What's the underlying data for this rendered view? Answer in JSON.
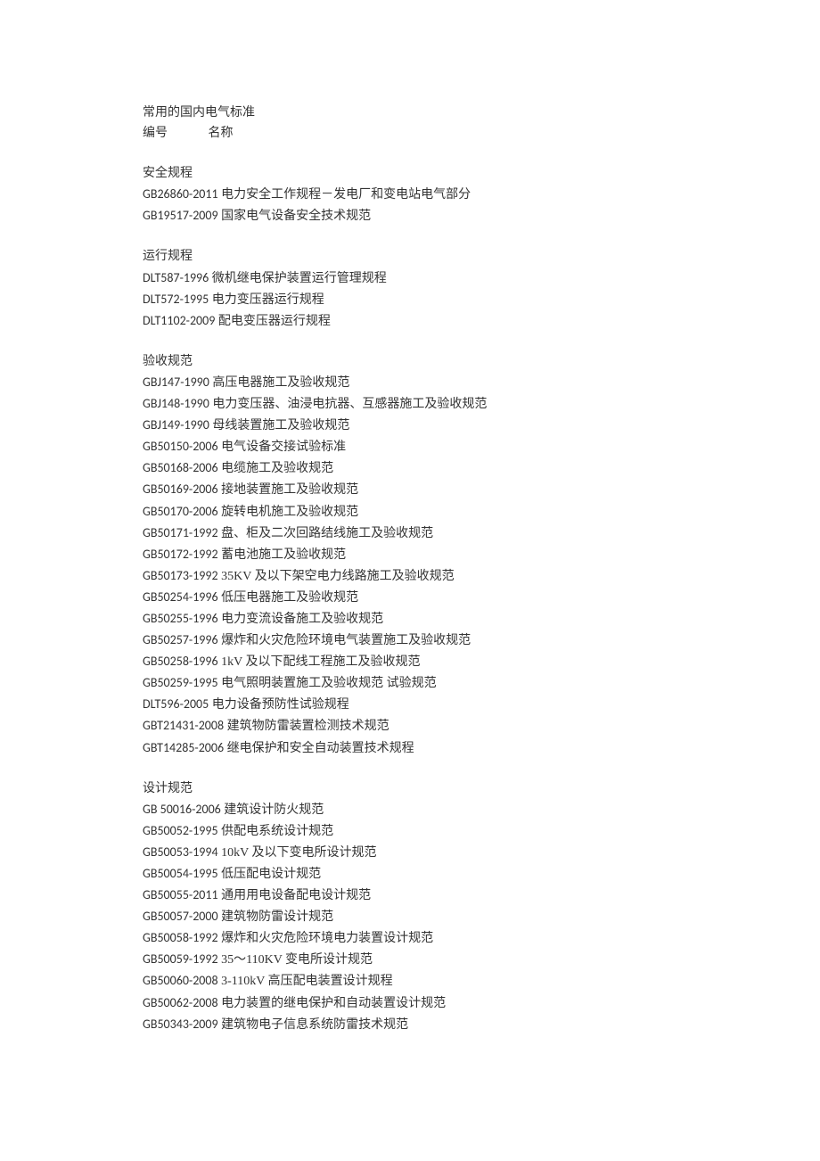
{
  "title": "常用的国内电气标准",
  "header": {
    "code_label": "编号",
    "name_label": "名称"
  },
  "sections": [
    {
      "title": "安全规程",
      "entries": [
        {
          "code": "GB26860-2011",
          "name": "电力安全工作规程－发电厂和变电站电气部分"
        },
        {
          "code": "GB19517-2009",
          "name": "国家电气设备安全技术规范"
        }
      ]
    },
    {
      "title": "运行规程",
      "entries": [
        {
          "code": "DLT587-1996",
          "name": "微机继电保护装置运行管理规程"
        },
        {
          "code": "DLT572-1995",
          "name": "电力变压器运行规程"
        },
        {
          "code": "DLT1102-2009",
          "name": "配电变压器运行规程"
        }
      ]
    },
    {
      "title": "验收规范",
      "entries": [
        {
          "code": "GBJ147-1990",
          "name": "高压电器施工及验收规范"
        },
        {
          "code": "GBJ148-1990",
          "name": "电力变压器、油浸电抗器、互感器施工及验收规范"
        },
        {
          "code": "GBJ149-1990",
          "name": "母线装置施工及验收规范"
        },
        {
          "code": "GB50150-2006",
          "name": "电气设备交接试验标准"
        },
        {
          "code": "GB50168-2006",
          "name": "电缆施工及验收规范"
        },
        {
          "code": "GB50169-2006",
          "name": "接地装置施工及验收规范"
        },
        {
          "code": "GB50170-2006",
          "name": "旋转电机施工及验收规范"
        },
        {
          "code": "GB50171-1992",
          "name": "盘、柜及二次回路结线施工及验收规范"
        },
        {
          "code": "GB50172-1992",
          "name": "蓄电池施工及验收规范"
        },
        {
          "code": "GB50173-1992",
          "name": "35KV 及以下架空电力线路施工及验收规范"
        },
        {
          "code": "GB50254-1996",
          "name": "低压电器施工及验收规范"
        },
        {
          "code": "GB50255-1996",
          "name": "电力变流设备施工及验收规范"
        },
        {
          "code": "GB50257-1996",
          "name": "爆炸和火灾危险环境电气装置施工及验收规范"
        },
        {
          "code": "GB50258-1996",
          "name": "1kV 及以下配线工程施工及验收规范"
        },
        {
          "code": "GB50259-1995",
          "name": "电气照明装置施工及验收规范  试验规范"
        },
        {
          "code": "DLT596-2005",
          "name": "电力设备预防性试验规程"
        },
        {
          "code": "GBT21431-2008",
          "name": "建筑物防雷装置检测技术规范"
        },
        {
          "code": "GBT14285-2006",
          "name": "继电保护和安全自动装置技术规程"
        }
      ]
    },
    {
      "title": "设计规范",
      "entries": [
        {
          "code": "GB 50016-2006",
          "name": "建筑设计防火规范"
        },
        {
          "code": "GB50052-1995",
          "name": "供配电系统设计规范"
        },
        {
          "code": "GB50053-1994",
          "name": "10kV 及以下变电所设计规范"
        },
        {
          "code": "GB50054-1995",
          "name": "低压配电设计规范"
        },
        {
          "code": "GB50055-2011",
          "name": "通用用电设备配电设计规范"
        },
        {
          "code": "GB50057-2000",
          "name": "建筑物防雷设计规范"
        },
        {
          "code": "GB50058-1992",
          "name": "爆炸和火灾危险环境电力装置设计规范"
        },
        {
          "code": "GB50059-1992",
          "name": "35～110KV 变电所设计规范"
        },
        {
          "code": "GB50060-2008",
          "name": "3-110kV 高压配电装置设计规程"
        },
        {
          "code": "GB50062-2008",
          "name": "电力装置的继电保护和自动装置设计规范"
        },
        {
          "code": "GB50343-2009",
          "name": "建筑物电子信息系统防雷技术规范"
        }
      ]
    }
  ]
}
